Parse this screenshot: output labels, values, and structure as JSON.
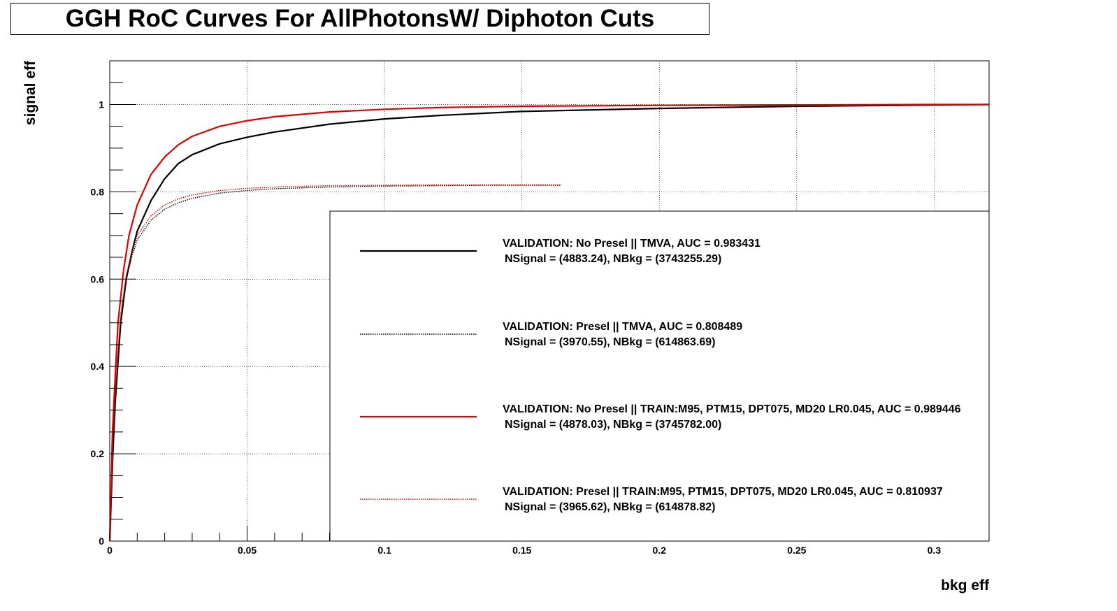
{
  "chart_data": {
    "type": "line",
    "title": "GGH RoC Curves For AllPhotonsW/ Diphoton Cuts",
    "xlabel": "bkg eff",
    "ylabel": "signal eff",
    "xlim": [
      0,
      0.32
    ],
    "ylim": [
      0,
      1.1
    ],
    "grid": true,
    "legend_position": "bottom-right",
    "x_ticks": [
      {
        "value": 0,
        "label": "0"
      },
      {
        "value": 0.05,
        "label": "0.05"
      },
      {
        "value": 0.1,
        "label": "0.1"
      },
      {
        "value": 0.15,
        "label": "0.15"
      },
      {
        "value": 0.2,
        "label": "0.2"
      },
      {
        "value": 0.25,
        "label": "0.25"
      },
      {
        "value": 0.3,
        "label": "0.3"
      }
    ],
    "y_ticks": [
      {
        "value": 0,
        "label": "0"
      },
      {
        "value": 0.2,
        "label": "0.2"
      },
      {
        "value": 0.4,
        "label": "0.4"
      },
      {
        "value": 0.6,
        "label": "0.6"
      },
      {
        "value": 0.8,
        "label": "0.8"
      },
      {
        "value": 1,
        "label": "1"
      }
    ],
    "series": [
      {
        "name": "VALIDATION: No Presel || TMVA, AUC = 0.983431",
        "detail": "NSignal = (4883.24), NBkg = (3743255.29)",
        "color": "#000000",
        "style": "solid",
        "x": [
          0,
          0.001,
          0.002,
          0.004,
          0.006,
          0.008,
          0.01,
          0.015,
          0.02,
          0.025,
          0.03,
          0.04,
          0.05,
          0.06,
          0.08,
          0.1,
          0.12,
          0.15,
          0.2,
          0.25,
          0.3,
          0.32
        ],
        "y": [
          0,
          0.18,
          0.32,
          0.5,
          0.6,
          0.66,
          0.71,
          0.78,
          0.83,
          0.865,
          0.885,
          0.91,
          0.925,
          0.937,
          0.955,
          0.967,
          0.975,
          0.984,
          0.991,
          0.996,
          0.999,
          1.0
        ]
      },
      {
        "name": "VALIDATION: Presel || TMVA, AUC = 0.808489",
        "detail": "NSignal = (3970.55), NBkg = (614863.69)",
        "color": "#000000",
        "style": "dotted",
        "x": [
          0,
          0.001,
          0.002,
          0.004,
          0.006,
          0.008,
          0.01,
          0.015,
          0.02,
          0.025,
          0.03,
          0.04,
          0.05,
          0.06,
          0.08,
          0.1,
          0.12,
          0.14,
          0.164
        ],
        "y": [
          0,
          0.2,
          0.33,
          0.5,
          0.6,
          0.65,
          0.69,
          0.735,
          0.76,
          0.775,
          0.785,
          0.797,
          0.803,
          0.807,
          0.811,
          0.813,
          0.814,
          0.815,
          0.815
        ]
      },
      {
        "name": "VALIDATION: No Presel || TRAIN:M95, PTM15, DPT075, MD20 LR0.045, AUC = 0.989446",
        "detail": "NSignal = (4878.03), NBkg = (3745782.00)",
        "color": "#e00000",
        "style": "solid",
        "x": [
          0,
          0.001,
          0.002,
          0.003,
          0.005,
          0.007,
          0.01,
          0.015,
          0.02,
          0.025,
          0.03,
          0.04,
          0.05,
          0.06,
          0.08,
          0.1,
          0.12,
          0.15,
          0.2,
          0.25,
          0.3,
          0.32
        ],
        "y": [
          0,
          0.25,
          0.38,
          0.5,
          0.62,
          0.7,
          0.77,
          0.84,
          0.88,
          0.908,
          0.927,
          0.95,
          0.963,
          0.972,
          0.983,
          0.989,
          0.993,
          0.996,
          0.998,
          0.999,
          1.0,
          1.0
        ]
      },
      {
        "name": "VALIDATION: Presel || TRAIN:M95, PTM15, DPT075, MD20 LR0.045, AUC = 0.810937",
        "detail": "NSignal = (3965.62), NBkg = (614878.82)",
        "color": "#e00000",
        "style": "dotted",
        "x": [
          0,
          0.001,
          0.002,
          0.004,
          0.006,
          0.008,
          0.01,
          0.015,
          0.02,
          0.025,
          0.03,
          0.04,
          0.05,
          0.06,
          0.08,
          0.1,
          0.12,
          0.14,
          0.164
        ],
        "y": [
          0,
          0.22,
          0.35,
          0.52,
          0.61,
          0.66,
          0.7,
          0.745,
          0.77,
          0.784,
          0.793,
          0.803,
          0.808,
          0.811,
          0.814,
          0.815,
          0.816,
          0.816,
          0.816
        ]
      }
    ]
  }
}
